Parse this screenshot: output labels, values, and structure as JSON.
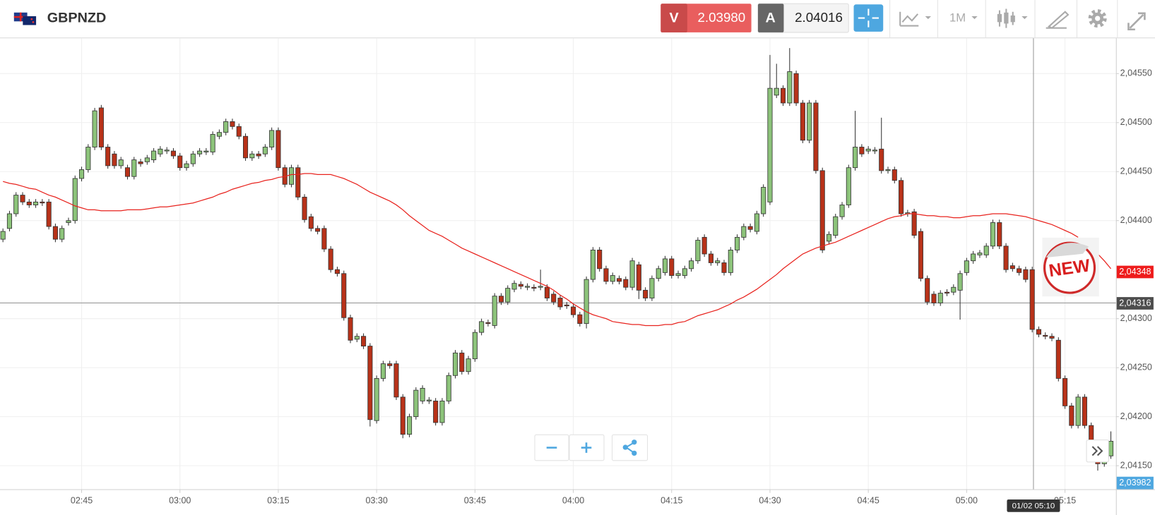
{
  "header": {
    "symbol": "GBPNZD",
    "sell_label": "V",
    "sell_price": "2.03980",
    "buy_label": "A",
    "buy_price": "2.04016",
    "timeframe": "1M"
  },
  "chart_data": {
    "type": "candlestick",
    "categories": [
      null,
      null,
      null,
      null,
      null,
      null,
      null,
      null,
      null,
      null,
      null,
      null,
      "02:45",
      null,
      null,
      null,
      null,
      null,
      null,
      null,
      null,
      null,
      null,
      null,
      null,
      null,
      null,
      "03:00",
      null,
      null,
      null,
      null,
      null,
      null,
      null,
      null,
      null,
      null,
      null,
      null,
      null,
      null,
      "03:15",
      null,
      null,
      null,
      null,
      null,
      null,
      null,
      null,
      null,
      null,
      null,
      null,
      null,
      null,
      "03:30",
      null,
      null,
      null,
      null,
      null,
      null,
      null,
      null,
      null,
      null,
      null,
      null,
      null,
      null,
      "03:45",
      null,
      null,
      null,
      null,
      null,
      null,
      null,
      null,
      null,
      null,
      null,
      null,
      null,
      null,
      "04:00",
      null,
      null,
      null,
      null,
      null,
      null,
      null,
      null,
      null,
      null,
      null,
      null,
      null,
      null,
      "04:15",
      null,
      null,
      null,
      null,
      null,
      null,
      null,
      null,
      null,
      null,
      null,
      null,
      null,
      null,
      "04:30",
      null,
      null,
      null,
      null,
      null,
      null,
      null,
      null,
      null,
      null,
      null,
      null,
      null,
      null,
      "04:45",
      null,
      null,
      null,
      null,
      null,
      null,
      null,
      null,
      null,
      null,
      null,
      null,
      null,
      null,
      "05:00",
      null,
      null,
      null,
      null,
      null,
      null,
      null,
      null,
      null,
      null,
      null,
      null,
      null,
      null,
      "05:15",
      null,
      null,
      null,
      null,
      null,
      null,
      null
    ],
    "open": [
      2.04381,
      2.04392,
      2.04407,
      2.04426,
      2.04419,
      2.04416,
      2.04419,
      2.04419,
      2.04394,
      2.04381,
      2.04398,
      2.044,
      2.04443,
      2.04452,
      2.04475,
      2.04515,
      2.04475,
      2.04468,
      2.04456,
      2.04454,
      2.04445,
      2.0446,
      2.0446,
      2.04462,
      2.04468,
      2.04471,
      2.04471,
      2.04466,
      2.04454,
      2.04458,
      2.04468,
      2.0447,
      2.0447,
      2.04486,
      2.0449,
      2.04501,
      2.04496,
      2.04486,
      2.04464,
      2.04468,
      2.04468,
      2.04475,
      2.04492,
      2.04454,
      2.04437,
      2.04454,
      2.04424,
      2.04404,
      2.04392,
      2.04392,
      2.04371,
      2.0435,
      2.04346,
      2.04301,
      2.04279,
      2.04282,
      2.04272,
      2.04196,
      2.04239,
      2.04254,
      2.04254,
      2.0422,
      2.04182,
      2.042,
      2.04216,
      2.04216,
      2.04216,
      2.04194,
      2.04216,
      2.04242,
      2.04265,
      2.04246,
      2.04259,
      2.04286,
      2.04296,
      2.04293,
      2.04323,
      2.04317,
      2.0433,
      2.04335,
      2.04332,
      2.04332,
      2.04332,
      2.04332,
      2.04325,
      2.04321,
      2.04314,
      2.04312,
      2.04304,
      2.04295,
      2.0434,
      2.0437,
      2.04351,
      2.04338,
      2.04341,
      2.0434,
      2.04332,
      2.04355,
      2.04329,
      2.04321,
      2.04341,
      2.04347,
      2.04361,
      2.04344,
      2.04344,
      2.04351,
      2.04359,
      2.04383,
      2.04366,
      2.04357,
      2.04357,
      2.04347,
      2.0437,
      2.04383,
      2.04394,
      2.04389,
      2.04407,
      2.04419,
      2.04528,
      2.04535,
      2.0452,
      2.0455,
      2.0452,
      2.04482,
      2.0452,
      2.04451,
      2.04379,
      2.04385,
      2.04404,
      2.04416,
      2.04454,
      2.04475,
      2.04471,
      2.04471,
      2.04473,
      2.04451,
      2.04452,
      2.04441,
      2.04407,
      2.04409,
      2.04389,
      2.04341,
      2.04325,
      2.04316,
      2.04327,
      2.04327,
      2.04329,
      2.04347,
      2.04359,
      2.04365,
      2.04365,
      2.04374,
      2.04398,
      2.04374,
      2.04354,
      2.04351,
      2.0435,
      2.0435,
      2.04289,
      2.04283,
      2.04282,
      2.04278,
      2.04239,
      2.04211,
      2.04191,
      2.0422,
      2.04191,
      2.04171,
      2.04152,
      2.0416
    ],
    "high": [
      2.04392,
      2.0441,
      2.04429,
      2.04429,
      2.04422,
      2.04422,
      2.04422,
      2.04422,
      2.04397,
      2.04395,
      2.04403,
      2.04446,
      2.04455,
      2.04478,
      2.04515,
      2.04518,
      2.04478,
      2.04471,
      2.04465,
      2.04457,
      2.04465,
      2.04463,
      2.04467,
      2.04474,
      2.04476,
      2.04475,
      2.04474,
      2.04469,
      2.04461,
      2.04471,
      2.04474,
      2.04474,
      2.04491,
      2.04493,
      2.04504,
      2.04504,
      2.04499,
      2.04489,
      2.04471,
      2.04471,
      2.04478,
      2.04495,
      2.04495,
      2.04457,
      2.04457,
      2.04457,
      2.04427,
      2.04407,
      2.04395,
      2.04395,
      2.04374,
      2.04353,
      2.04349,
      2.04304,
      2.04285,
      2.04285,
      2.04275,
      2.04242,
      2.04257,
      2.04257,
      2.04257,
      2.04223,
      2.04203,
      2.0423,
      2.04232,
      2.0422,
      2.04219,
      2.04219,
      2.04245,
      2.04268,
      2.04268,
      2.04262,
      2.04289,
      2.043,
      2.04299,
      2.04326,
      2.04326,
      2.04334,
      2.04339,
      2.04338,
      2.04336,
      2.04335,
      2.0435,
      2.04335,
      2.04328,
      2.04324,
      2.04317,
      2.04315,
      2.04307,
      2.04343,
      2.04373,
      2.04373,
      2.04354,
      2.04347,
      2.04344,
      2.04343,
      2.04362,
      2.04358,
      2.04332,
      2.04344,
      2.04354,
      2.04364,
      2.04364,
      2.04349,
      2.04354,
      2.04362,
      2.04383,
      2.04386,
      2.04369,
      2.04362,
      2.0436,
      2.04373,
      2.04386,
      2.04397,
      2.04397,
      2.0441,
      2.04437,
      2.04569,
      2.0456,
      2.04538,
      2.04576,
      2.04553,
      2.04523,
      2.04523,
      2.04523,
      2.04454,
      2.04389,
      2.04407,
      2.04419,
      2.04457,
      2.04512,
      2.04478,
      2.04476,
      2.04475,
      2.04505,
      2.04455,
      2.04455,
      2.04444,
      2.04411,
      2.04412,
      2.04392,
      2.04344,
      2.04328,
      2.04329,
      2.0433,
      2.04335,
      2.04349,
      2.04362,
      2.04369,
      2.0437,
      2.04377,
      2.04401,
      2.04401,
      2.04377,
      2.04357,
      2.04354,
      2.04353,
      2.04353,
      2.04292,
      2.04286,
      2.04285,
      2.04281,
      2.04242,
      2.04214,
      2.04223,
      2.04223,
      2.04194,
      2.04174,
      2.04159,
      2.04185
    ],
    "low": [
      2.04378,
      2.04389,
      2.04404,
      2.04416,
      2.04413,
      2.04413,
      2.04415,
      2.04391,
      2.04378,
      2.04378,
      2.04395,
      2.04397,
      2.0444,
      2.04449,
      2.04472,
      2.04472,
      2.04453,
      2.04453,
      2.04453,
      2.04442,
      2.04442,
      2.04455,
      2.04457,
      2.04459,
      2.04465,
      2.04468,
      2.04463,
      2.04451,
      2.04451,
      2.04455,
      2.04465,
      2.04467,
      2.04467,
      2.04483,
      2.04487,
      2.04493,
      2.04483,
      2.04461,
      2.04461,
      2.04463,
      2.04465,
      2.04472,
      2.04451,
      2.04434,
      2.04434,
      2.04421,
      2.04398,
      2.04389,
      2.04386,
      2.04368,
      2.04347,
      2.04343,
      2.04298,
      2.04275,
      2.04276,
      2.04269,
      2.0419,
      2.04193,
      2.04236,
      2.04249,
      2.04217,
      2.04178,
      2.04179,
      2.04197,
      2.04213,
      2.04213,
      2.04191,
      2.04191,
      2.04213,
      2.04239,
      2.04243,
      2.04243,
      2.04256,
      2.04283,
      2.04292,
      2.0429,
      2.04314,
      2.04314,
      2.04327,
      2.0433,
      2.04329,
      2.04328,
      2.04329,
      2.04318,
      2.04314,
      2.04309,
      2.0431,
      2.04301,
      2.04292,
      2.0429,
      2.04337,
      2.04348,
      2.04335,
      2.04335,
      2.04335,
      2.04329,
      2.04329,
      2.0432,
      2.04318,
      2.04318,
      2.04338,
      2.04344,
      2.04341,
      2.04341,
      2.04341,
      2.04348,
      2.04356,
      2.04363,
      2.04354,
      2.04354,
      2.04344,
      2.04344,
      2.04367,
      2.0438,
      2.04388,
      2.04386,
      2.04404,
      2.04416,
      2.04525,
      2.04517,
      2.04517,
      2.04517,
      2.04479,
      2.04479,
      2.04448,
      2.04367,
      2.04376,
      2.04382,
      2.04401,
      2.04413,
      2.04451,
      2.04465,
      2.04468,
      2.04468,
      2.04448,
      2.04448,
      2.04438,
      2.04404,
      2.04404,
      2.04382,
      2.04338,
      2.04314,
      2.04313,
      2.04313,
      2.04323,
      2.04324,
      2.04299,
      2.04344,
      2.04356,
      2.04362,
      2.04362,
      2.04371,
      2.04371,
      2.04347,
      2.04348,
      2.04344,
      2.04337,
      2.04286,
      2.04281,
      2.04279,
      2.04277,
      2.04236,
      2.04208,
      2.04188,
      2.04188,
      2.04188,
      2.04168,
      2.04145,
      2.04149,
      2.04157
    ],
    "close": [
      2.04389,
      2.04407,
      2.04426,
      2.04419,
      2.04416,
      2.04419,
      2.04418,
      2.04394,
      2.04381,
      2.04392,
      2.044,
      2.04443,
      2.04452,
      2.04475,
      2.04512,
      2.04475,
      2.04456,
      2.04456,
      2.04462,
      2.04445,
      2.04462,
      2.04458,
      2.04464,
      2.04471,
      2.04473,
      2.04472,
      2.04466,
      2.04454,
      2.04458,
      2.04468,
      2.04471,
      2.04471,
      2.04488,
      2.0449,
      2.04501,
      2.04496,
      2.04486,
      2.04464,
      2.04468,
      2.04466,
      2.04475,
      2.04492,
      2.04454,
      2.04437,
      2.04454,
      2.04424,
      2.04401,
      2.04392,
      2.04389,
      2.04371,
      2.0435,
      2.04346,
      2.04301,
      2.04278,
      2.04282,
      2.04272,
      2.04197,
      2.04239,
      2.04254,
      2.04252,
      2.0422,
      2.04182,
      2.042,
      2.04227,
      2.04229,
      2.04217,
      2.04194,
      2.04216,
      2.04242,
      2.04265,
      2.04246,
      2.04259,
      2.04286,
      2.04297,
      2.04295,
      2.04323,
      2.04317,
      2.04331,
      2.04336,
      2.04333,
      2.04333,
      2.04331,
      2.04333,
      2.04321,
      2.04317,
      2.04312,
      2.04313,
      2.04304,
      2.04295,
      2.0434,
      2.0437,
      2.04351,
      2.04338,
      2.04344,
      2.04338,
      2.04332,
      2.04359,
      2.04329,
      2.04321,
      2.04341,
      2.04351,
      2.04361,
      2.04344,
      2.04346,
      2.04351,
      2.04359,
      2.0438,
      2.04366,
      2.04357,
      2.04359,
      2.04347,
      2.0437,
      2.04383,
      2.04394,
      2.04391,
      2.04407,
      2.04434,
      2.04535,
      2.04535,
      2.0452,
      2.04552,
      2.0452,
      2.04482,
      2.0452,
      2.04451,
      2.0437,
      2.04386,
      2.04404,
      2.04416,
      2.04454,
      2.04475,
      2.04468,
      2.04473,
      2.04472,
      2.04451,
      2.04452,
      2.04441,
      2.04407,
      2.04408,
      2.04385,
      2.04341,
      2.04317,
      2.04316,
      2.04326,
      2.04326,
      2.04332,
      2.04346,
      2.04359,
      2.04366,
      2.04367,
      2.04374,
      2.04398,
      2.04374,
      2.0435,
      2.04351,
      2.04347,
      2.0434,
      2.04289,
      2.04284,
      2.04282,
      2.0428,
      2.04239,
      2.04211,
      2.04191,
      2.0422,
      2.04191,
      2.04171,
      2.04152,
      2.04156,
      2.04175
    ],
    "up_color": "#8cc37a",
    "down_color": "#b83219",
    "moving_average": {
      "color": "#e8231e",
      "values": [
        2.0444,
        2.04438,
        2.04437,
        2.04435,
        2.04433,
        2.04432,
        2.04429,
        2.04426,
        2.04424,
        2.04421,
        2.04418,
        2.04415,
        2.04413,
        2.04411,
        2.04411,
        2.0441,
        2.0441,
        2.0441,
        2.0441,
        2.04411,
        2.04411,
        2.04411,
        2.04412,
        2.04413,
        2.04414,
        2.04414,
        2.04415,
        2.04416,
        2.04417,
        2.04418,
        2.0442,
        2.04422,
        2.04424,
        2.04427,
        2.04429,
        2.04432,
        2.04434,
        2.04436,
        2.04438,
        2.04439,
        2.04441,
        2.04442,
        2.04444,
        2.04445,
        2.04447,
        2.04447,
        2.04448,
        2.04448,
        2.04447,
        2.04447,
        2.04447,
        2.04445,
        2.04443,
        2.0444,
        2.04437,
        2.04433,
        2.04429,
        2.04426,
        2.04423,
        2.0442,
        2.04416,
        2.04411,
        2.04405,
        2.044,
        2.04395,
        2.0439,
        2.04387,
        2.04384,
        2.0438,
        2.04376,
        2.04372,
        2.04369,
        2.04366,
        2.04363,
        2.0436,
        2.04357,
        2.04354,
        2.04351,
        2.04348,
        2.04345,
        2.04342,
        2.04339,
        2.04336,
        2.04333,
        2.04329,
        2.04324,
        2.0432,
        2.04315,
        2.04311,
        2.04307,
        2.04304,
        2.04302,
        2.043,
        2.04297,
        2.04296,
        2.04295,
        2.04294,
        2.04294,
        2.04293,
        2.04293,
        2.04293,
        2.04294,
        2.04294,
        2.04296,
        2.04297,
        2.043,
        2.04303,
        2.04305,
        2.04307,
        2.04309,
        2.04312,
        2.04315,
        2.04319,
        2.04322,
        2.04326,
        2.0433,
        2.04335,
        2.0434,
        2.04345,
        2.04351,
        2.04356,
        2.04361,
        2.04366,
        2.04369,
        2.04372,
        2.04374,
        2.04376,
        2.04378,
        2.04381,
        2.04384,
        2.04387,
        2.0439,
        2.04393,
        2.04396,
        2.04399,
        2.04402,
        2.04404,
        2.04405,
        2.04407,
        2.04407,
        2.04406,
        2.04405,
        2.04405,
        2.04404,
        2.04404,
        2.04403,
        2.04403,
        2.04404,
        2.04405,
        2.04405,
        2.04406,
        2.04407,
        2.04407,
        2.04407,
        2.04406,
        2.04405,
        2.04404,
        2.04402,
        2.044,
        2.04398,
        2.04396,
        2.04393,
        2.0439,
        2.04387,
        2.04383,
        null,
        null,
        2.04366,
        2.04359,
        2.04351
      ]
    },
    "ylim": [
      2.04126,
      2.04586
    ],
    "yticks": [
      {
        "value": 2.0415,
        "label": "2,04150"
      },
      {
        "value": 2.042,
        "label": "2,04200"
      },
      {
        "value": 2.0425,
        "label": "2,04250"
      },
      {
        "value": 2.043,
        "label": "2,04300"
      },
      {
        "value": 2.044,
        "label": "2,04400"
      },
      {
        "value": 2.0445,
        "label": "2,04450"
      },
      {
        "value": 2.045,
        "label": "2,04500"
      },
      {
        "value": 2.0455,
        "label": "2,04550"
      }
    ],
    "grid": true,
    "price_lines": [
      {
        "value": 2.04348,
        "label": "2,04348",
        "color": "#ee1c1c"
      },
      {
        "value": 2.04316,
        "label": "2,04316",
        "color": "#4d4d4d"
      },
      {
        "value": 2.03982,
        "label": "2,03982",
        "color": "#4ea7e0"
      }
    ],
    "crosshair": {
      "label": "01/02 05:10"
    },
    "badge": "NEW"
  }
}
